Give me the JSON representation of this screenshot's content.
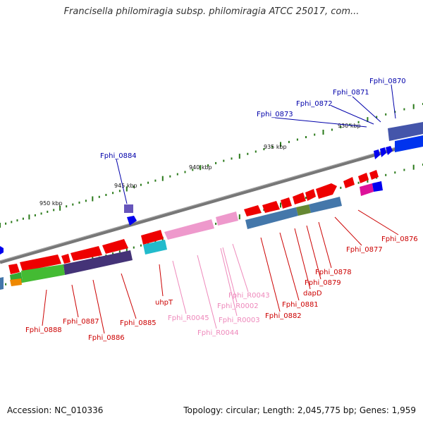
{
  "title": "Francisella philomiragia subsp. philomiragia ATCC 25017, com...",
  "footer": {
    "accession": "Accession: NC_010336",
    "summary": "Topology: circular; Length: 2,045,775 bp; Genes: 1,959"
  },
  "colors": {
    "backbone": "#777777",
    "tick_major": "#2a7a1a",
    "tick_minor": "#2a7a1a",
    "label_red": "#cc0000",
    "label_blue": "#0000aa",
    "label_pink": "#ee88bb"
  },
  "kbp_labels": [
    "930 kbp",
    "935 kbp",
    "940 kbp",
    "945 kbp",
    "950 kbp"
  ],
  "gene_labels": [
    {
      "text": "Fphi_0870",
      "color": "blue"
    },
    {
      "text": "Fphi_0871",
      "color": "blue"
    },
    {
      "text": "Fphi_0872",
      "color": "blue"
    },
    {
      "text": "Fphi_0873",
      "color": "blue"
    },
    {
      "text": "Fphi_0884",
      "color": "blue"
    },
    {
      "text": "Fphi_0876",
      "color": "red"
    },
    {
      "text": "Fphi_0877",
      "color": "red"
    },
    {
      "text": "Fphi_0878",
      "color": "red"
    },
    {
      "text": "Fphi_0879",
      "color": "red"
    },
    {
      "text": "dapD",
      "color": "red"
    },
    {
      "text": "Fphi_0881",
      "color": "red"
    },
    {
      "text": "Fphi_0882",
      "color": "red"
    },
    {
      "text": "Fphi_R0043",
      "color": "pink"
    },
    {
      "text": "Fphi_R0002",
      "color": "pink"
    },
    {
      "text": "Fphi_R0003",
      "color": "pink"
    },
    {
      "text": "Fphi_R0044",
      "color": "pink"
    },
    {
      "text": "Fphi_R0045",
      "color": "pink"
    },
    {
      "text": "uhpT",
      "color": "red"
    },
    {
      "text": "Fphi_0885",
      "color": "red"
    },
    {
      "text": "Fphi_0886",
      "color": "red"
    },
    {
      "text": "Fphi_0887",
      "color": "red"
    },
    {
      "text": "Fphi_0888",
      "color": "red"
    }
  ]
}
